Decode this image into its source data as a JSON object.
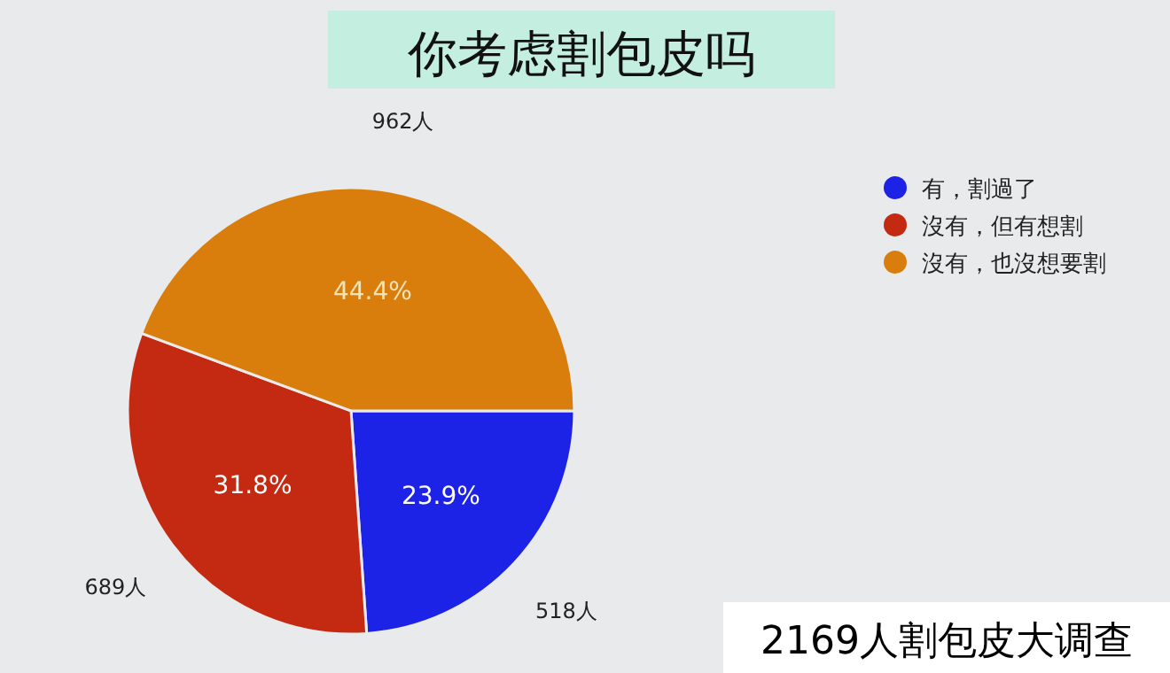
{
  "chart_data": {
    "type": "pie",
    "title": "你考虑割包皮吗",
    "categories": [
      "有，割過了",
      "沒有，但有想割",
      "沒有，也沒想要割"
    ],
    "values": [
      518,
      689,
      962
    ],
    "value_labels": [
      "518人",
      "689人",
      "962人"
    ],
    "colors": [
      "#1c22e6",
      "#c42a12",
      "#d97e0c"
    ],
    "annotations": [
      {
        "text": "23.9%",
        "x": "有，割過了"
      },
      {
        "text": "31.8%",
        "x": "沒有，但有想割"
      },
      {
        "text": "44.4%",
        "x": "沒有，也沒想要割"
      },
      "2169人割包皮大调查"
    ],
    "legend": "top right"
  }
}
